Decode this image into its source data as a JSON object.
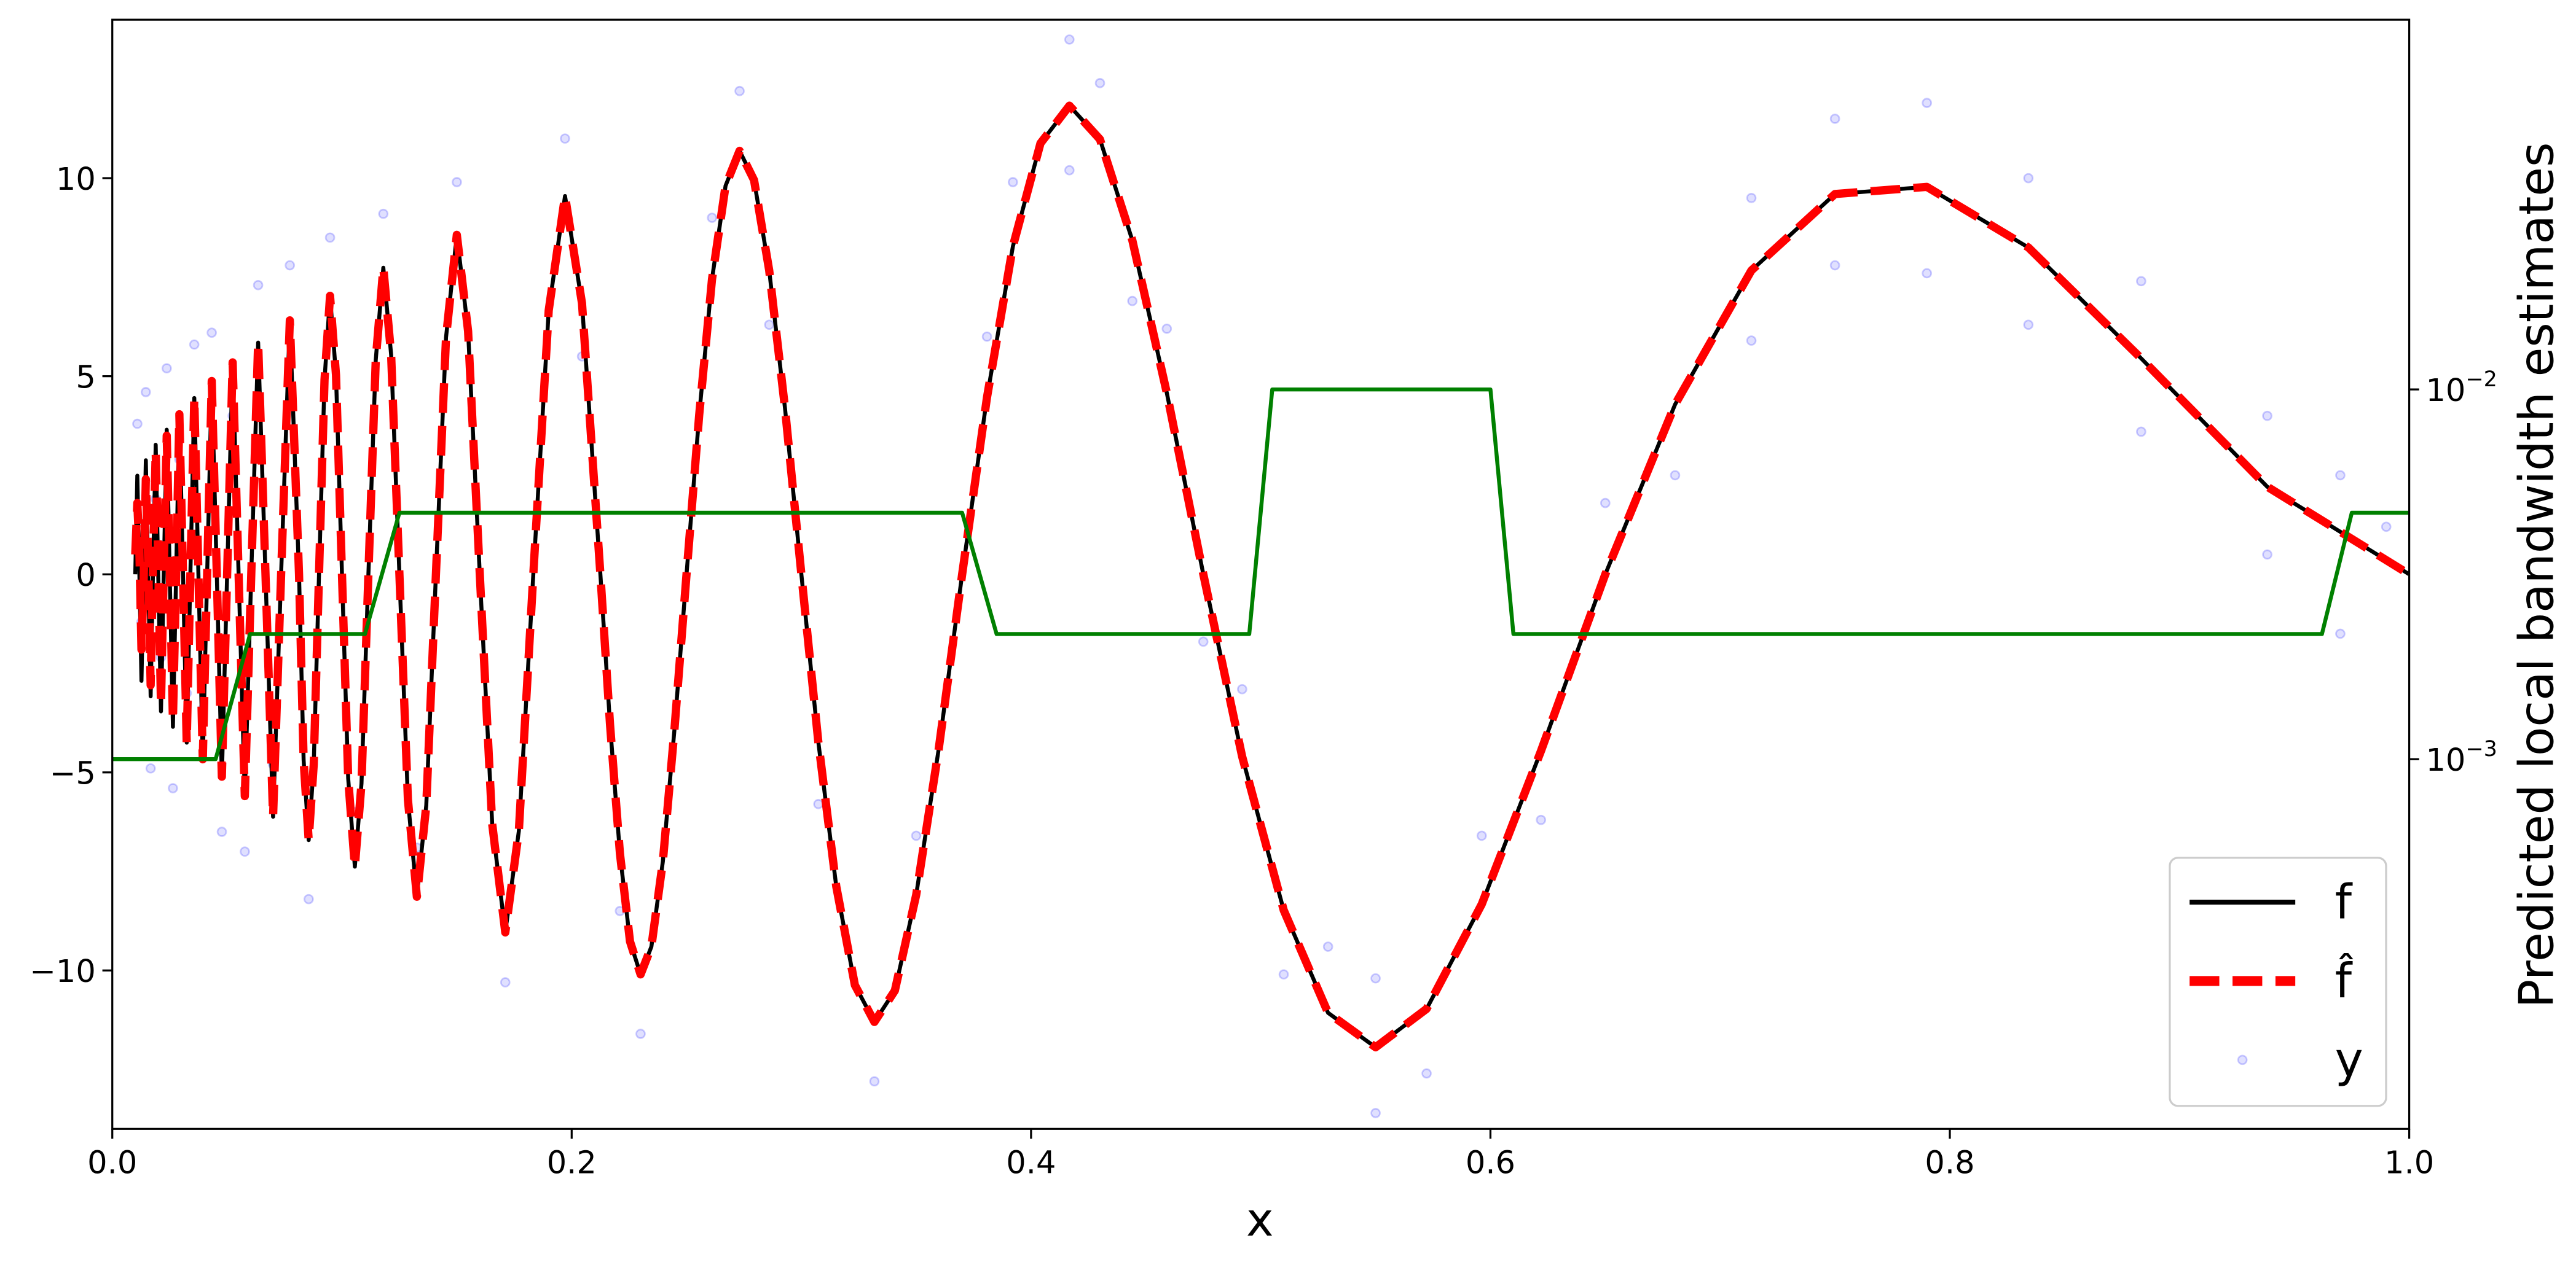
{
  "chart_data": {
    "type": "line",
    "xlabel": "x",
    "y2label": "Predicted local bandwidth estimates",
    "xlim": [
      0,
      1
    ],
    "ylim": [
      -14,
      14
    ],
    "y2lim": [
      0.0001,
      0.1
    ],
    "y2log": true,
    "legend": "lower right",
    "xticks": [
      {
        "value": 0,
        "label": "0.0"
      },
      0.2,
      0.4,
      0.6,
      0.8,
      {
        "value": 1,
        "label": "1.0"
      }
    ],
    "yticks": [
      {
        "value": -10,
        "label": "−10"
      },
      {
        "value": -5,
        "label": "−5"
      },
      0,
      5,
      10
    ],
    "y2ticks": [
      {
        "value": 0.001,
        "label": "10",
        "exponent": "−3"
      },
      {
        "value": 0.01,
        "label": "10",
        "exponent": "−2"
      }
    ],
    "series": [
      {
        "name": "y",
        "type": "scatter",
        "color": "#0000ff",
        "x": [
          0.0109,
          0.0127,
          0.0146,
          0.0167,
          0.0189,
          0.0212,
          0.0237,
          0.0264,
          0.0292,
          0.0324,
          0.0357,
          0.0394,
          0.0433,
          0.0477,
          0.0524,
          0.0577,
          0.0635,
          0.07,
          0.0773,
          0.0855,
          0.0948,
          0.1056,
          0.118,
          0.1326,
          0.15,
          0.1711,
          0.1971,
          0.2045,
          0.221,
          0.23,
          0.2611,
          0.2731,
          0.286,
          0.3074,
          0.3318,
          0.35,
          0.3808,
          0.3921,
          0.4167,
          0.4167,
          0.43,
          0.4441,
          0.4591,
          0.475,
          0.4919,
          0.51,
          0.5293,
          0.55,
          0.55,
          0.5722,
          0.5962,
          0.622,
          0.65,
          0.6804,
          0.7136,
          0.7136,
          0.75,
          0.75,
          0.79,
          0.79,
          0.8342,
          0.8342,
          0.8833,
          0.8833,
          0.9382,
          0.9382,
          0.97,
          0.97,
          0.99
        ],
        "values": [
          3.8,
          -1.2,
          4.6,
          -4.9,
          1.9,
          -2.1,
          5.2,
          -5.4,
          2.9,
          -3.0,
          5.8,
          -3.4,
          6.1,
          -6.5,
          4.0,
          -7.0,
          7.3,
          -4.8,
          7.8,
          -8.2,
          8.5,
          -6.0,
          9.1,
          -6.9,
          9.9,
          -10.3,
          11.0,
          5.5,
          -8.5,
          -11.6,
          9.0,
          12.2,
          6.3,
          -5.8,
          -12.8,
          -6.6,
          6.0,
          9.9,
          13.5,
          10.2,
          12.4,
          6.9,
          6.2,
          -1.7,
          -2.9,
          -10.1,
          -9.4,
          -13.6,
          -10.2,
          -12.6,
          -6.6,
          -6.2,
          1.8,
          2.5,
          9.5,
          5.9,
          11.5,
          7.8,
          11.9,
          7.6,
          10.0,
          6.3,
          7.4,
          3.6,
          4.0,
          0.5,
          2.5,
          -1.5,
          1.2
        ]
      },
      {
        "name": "f",
        "color": "#000000",
        "x": [
          0.01,
          0.0109,
          0.0118,
          0.0127,
          0.0136,
          0.0146,
          0.0156,
          0.0167,
          0.0177,
          0.0189,
          0.02,
          0.0212,
          0.0224,
          0.0237,
          0.025,
          0.0264,
          0.0278,
          0.0292,
          0.0308,
          0.0324,
          0.034,
          0.0357,
          0.0375,
          0.0394,
          0.0413,
          0.0433,
          0.0455,
          0.0477,
          0.05,
          0.0524,
          0.055,
          0.0577,
          0.0605,
          0.0635,
          0.0667,
          0.07,
          0.0735,
          0.0773,
          0.0813,
          0.0833,
          0.0855,
          0.0877,
          0.09,
          0.0924,
          0.0948,
          0.0974,
          0.1,
          0.1027,
          0.1056,
          0.1085,
          0.1115,
          0.1147,
          0.118,
          0.1214,
          0.125,
          0.1287,
          0.1326,
          0.1367,
          0.1409,
          0.1453,
          0.15,
          0.1549,
          0.16,
          0.1654,
          0.1711,
          0.177,
          0.1833,
          0.19,
          0.1971,
          0.2045,
          0.2125,
          0.2167,
          0.221,
          0.2254,
          0.23,
          0.2347,
          0.2397,
          0.2447,
          0.25,
          0.2555,
          0.2611,
          0.267,
          0.2731,
          0.2794,
          0.286,
          0.2929,
          0.3,
          0.3074,
          0.3152,
          0.3233,
          0.3318,
          0.3407,
          0.35,
          0.3598,
          0.37,
          0.3808,
          0.3921,
          0.4041,
          0.4167,
          0.43,
          0.4441,
          0.4591,
          0.475,
          0.4919,
          0.51,
          0.5293,
          0.55,
          0.5722,
          0.5962,
          0.622,
          0.65,
          0.6804,
          0.7136,
          0.75,
          0.79,
          0.8342,
          0.8833,
          0.9382,
          1.0
        ],
        "values": [
          0,
          2.49,
          0,
          -2.69,
          0,
          2.88,
          0,
          -3.08,
          0,
          3.27,
          0,
          -3.46,
          0,
          3.65,
          0,
          -3.85,
          0,
          4.04,
          0,
          -4.25,
          0,
          4.45,
          0,
          -4.67,
          0,
          4.88,
          0,
          -5.11,
          0,
          5.35,
          0,
          -5.6,
          0,
          5.85,
          0,
          -6.12,
          0,
          6.41,
          0,
          -4.69,
          -6.71,
          -4.8,
          0,
          4.91,
          7.03,
          5.03,
          0,
          -5.15,
          -7.38,
          -5.28,
          0,
          5.41,
          7.74,
          5.54,
          0,
          -5.68,
          -8.14,
          -5.83,
          0,
          5.98,
          8.57,
          6.14,
          0,
          -6.3,
          -9.04,
          -6.48,
          0,
          6.66,
          9.55,
          6.84,
          0,
          -3.79,
          -7.04,
          -9.27,
          -10.1,
          -9.4,
          -7.25,
          -3.95,
          0,
          4.01,
          7.45,
          9.81,
          10.69,
          9.95,
          7.67,
          4.18,
          0,
          -4.24,
          -7.88,
          -10.37,
          -11.3,
          -10.51,
          -8.09,
          -4.41,
          0,
          4.46,
          8.28,
          10.88,
          11.83,
          10.98,
          8.43,
          4.58,
          0,
          -4.6,
          -8.48,
          -11.07,
          -11.94,
          -10.97,
          -8.33,
          -4.46,
          0,
          4.29,
          7.67,
          9.6,
          9.78,
          8.25,
          5.45,
          2.21,
          0
        ]
      },
      {
        "name": "f̂",
        "color": "#ff0000",
        "dash": true,
        "x": [
          0.01,
          0.0109,
          0.0118,
          0.0127,
          0.0136,
          0.0146,
          0.0156,
          0.0167,
          0.0177,
          0.0189,
          0.02,
          0.0212,
          0.0224,
          0.0237,
          0.025,
          0.0264,
          0.0278,
          0.0292,
          0.0308,
          0.0324,
          0.034,
          0.0357,
          0.0375,
          0.0394,
          0.0413,
          0.0433,
          0.0455,
          0.0477,
          0.05,
          0.0524,
          0.055,
          0.0577,
          0.0605,
          0.0635,
          0.0667,
          0.07,
          0.0735,
          0.0773,
          0.0813,
          0.0833,
          0.0855,
          0.0877,
          0.09,
          0.0924,
          0.0948,
          0.0974,
          0.1,
          0.1027,
          0.1056,
          0.1085,
          0.1115,
          0.1147,
          0.118,
          0.1214,
          0.125,
          0.1287,
          0.1326,
          0.1367,
          0.1409,
          0.1453,
          0.15,
          0.1549,
          0.16,
          0.1654,
          0.1711,
          0.177,
          0.1833,
          0.19,
          0.1971,
          0.2045,
          0.2125,
          0.2167,
          0.221,
          0.2254,
          0.23,
          0.2347,
          0.2397,
          0.2447,
          0.25,
          0.2555,
          0.2611,
          0.267,
          0.2731,
          0.2794,
          0.286,
          0.2929,
          0.3,
          0.3074,
          0.3152,
          0.3233,
          0.3318,
          0.3407,
          0.35,
          0.3598,
          0.37,
          0.3808,
          0.3921,
          0.4041,
          0.4167,
          0.43,
          0.4441,
          0.4591,
          0.475,
          0.4919,
          0.51,
          0.5293,
          0.55,
          0.5722,
          0.5962,
          0.622,
          0.65,
          0.6804,
          0.7136,
          0.75,
          0.79,
          0.8342,
          0.8833,
          0.9382,
          1.0
        ],
        "values": [
          0.5,
          1.8,
          0.6,
          -1.9,
          -0.3,
          2.4,
          0.4,
          -2.8,
          0.2,
          3.1,
          0.3,
          -3.3,
          0.1,
          3.5,
          0.2,
          -3.7,
          0,
          4.04,
          0,
          -4.25,
          0,
          4.45,
          0,
          -4.67,
          0,
          4.88,
          0,
          -5.11,
          0,
          5.35,
          0,
          -5.6,
          0,
          5.85,
          0,
          -6.12,
          0,
          6.41,
          0,
          -4.69,
          -6.71,
          -4.8,
          0,
          4.91,
          7.03,
          5.03,
          0,
          -5.15,
          -7.38,
          -5.28,
          0,
          5.41,
          7.74,
          5.54,
          0,
          -5.68,
          -8.14,
          -5.83,
          0,
          5.98,
          8.57,
          6.14,
          0,
          -6.3,
          -9.04,
          -6.48,
          0,
          6.66,
          9.55,
          6.84,
          0,
          -3.79,
          -7.04,
          -9.27,
          -10.1,
          -9.4,
          -7.25,
          -3.95,
          0,
          4.01,
          7.45,
          9.81,
          10.69,
          9.95,
          7.67,
          4.18,
          0,
          -4.24,
          -7.88,
          -10.37,
          -11.3,
          -10.51,
          -8.09,
          -4.41,
          0,
          4.46,
          8.28,
          10.88,
          11.83,
          10.98,
          8.43,
          4.58,
          0,
          -4.6,
          -8.48,
          -11.07,
          -11.94,
          -10.97,
          -8.33,
          -4.46,
          0,
          4.29,
          7.67,
          9.6,
          9.78,
          8.25,
          5.45,
          2.21,
          0
        ]
      },
      {
        "color": "#008000",
        "axis": "y2",
        "x": [
          0,
          0.045,
          0.06,
          0.11,
          0.125,
          0.37,
          0.385,
          0.495,
          0.505,
          0.6,
          0.61,
          0.962,
          0.975,
          1
        ],
        "values": [
          0.001,
          0.001,
          0.00218,
          0.00218,
          0.00464,
          0.00464,
          0.00218,
          0.00218,
          0.01,
          0.01,
          0.00218,
          0.00218,
          0.00464,
          0.00464
        ]
      }
    ]
  }
}
